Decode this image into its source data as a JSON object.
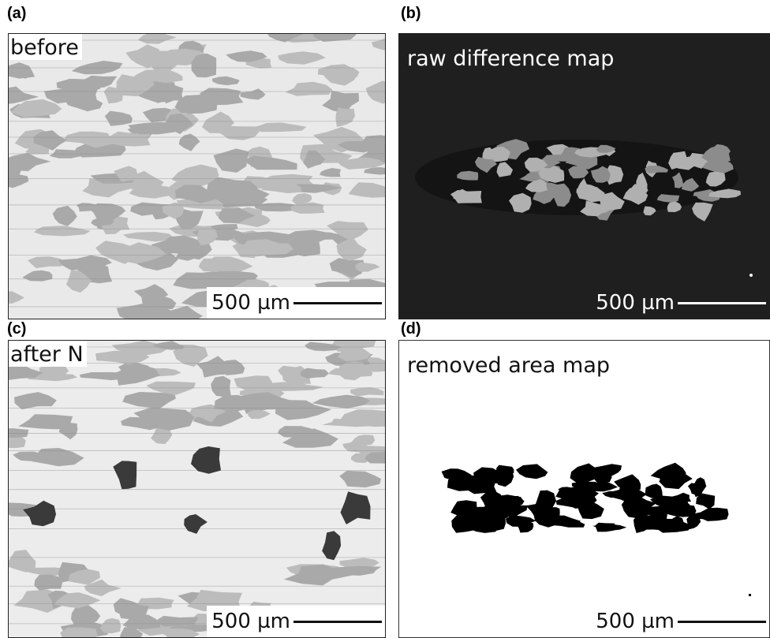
{
  "panels": [
    {
      "label": "(a)",
      "caption": "before",
      "scale": "500 µm"
    },
    {
      "label": "(b)",
      "caption": "raw difference map",
      "scale": "500 µm"
    },
    {
      "label": "(c)",
      "caption": "after N",
      "scale": "500 µm"
    },
    {
      "label": "(d)",
      "caption": "removed area map",
      "scale": "500 µm"
    }
  ]
}
